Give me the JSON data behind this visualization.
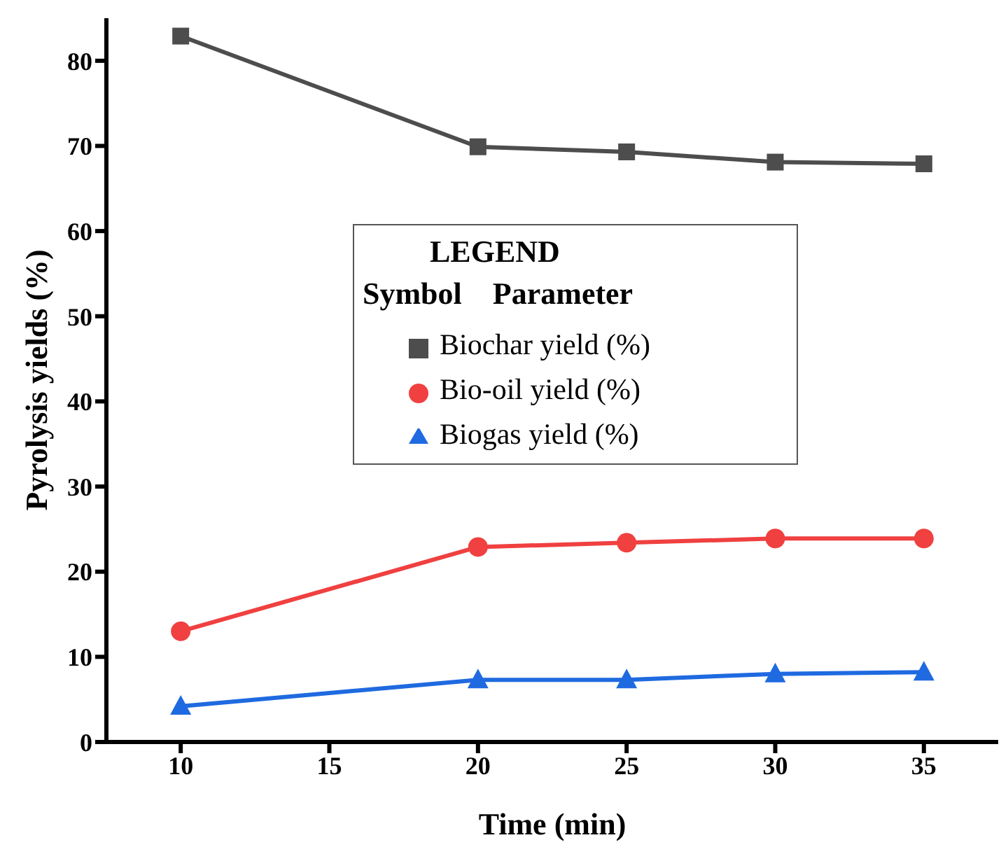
{
  "chart_data": {
    "type": "line",
    "xlabel": "Time (min)",
    "ylabel": "Pyrolysis yields (%)",
    "legend_title": "LEGEND",
    "annotations": [
      "Symbol    Parameter"
    ],
    "x": [
      10,
      20,
      25,
      30,
      35
    ],
    "series": [
      {
        "name": "Biochar yield (%)",
        "color": "#4d4d4d",
        "marker": "square",
        "values": [
          82.9,
          69.9,
          69.3,
          68.1,
          67.9
        ]
      },
      {
        "name": "Bio-oil yield (%)",
        "color": "#f04040",
        "marker": "circle",
        "values": [
          13.0,
          22.9,
          23.4,
          23.9,
          23.9
        ]
      },
      {
        "name": "Biogas yield (%)",
        "color": "#1f6ae0",
        "marker": "triangle",
        "values": [
          4.2,
          7.3,
          7.3,
          8.0,
          8.2
        ]
      }
    ],
    "xlim": [
      7.5,
      37.5
    ],
    "xticks": [
      10,
      15,
      20,
      25,
      30,
      35
    ],
    "ylim": [
      0,
      85
    ],
    "yticks": [
      0,
      10,
      20,
      30,
      40,
      50,
      60,
      70,
      80
    ],
    "grid": false,
    "legend": "center",
    "line_style": "solid"
  }
}
